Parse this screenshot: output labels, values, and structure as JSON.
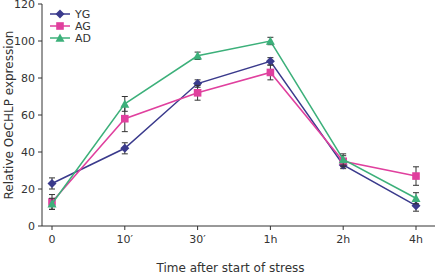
{
  "chart_data": {
    "type": "line",
    "x_label": "Time after start of stress",
    "y_label": "Relative OeCHLP expression",
    "categories": [
      "0",
      "10′",
      "30′",
      "1h",
      "2h",
      "4h"
    ],
    "series": [
      {
        "name": "YG",
        "color": "#3a3a8c",
        "marker": "diamond",
        "values": [
          23,
          42,
          77,
          89,
          33,
          11
        ],
        "errors": [
          3,
          3,
          2,
          2,
          2,
          3
        ]
      },
      {
        "name": "AG",
        "color": "#e0409e",
        "marker": "square",
        "values": [
          13,
          58,
          72,
          83,
          35,
          27
        ],
        "errors": [
          4,
          7,
          4,
          4,
          3,
          5
        ]
      },
      {
        "name": "AD",
        "color": "#3cb07a",
        "marker": "triangle",
        "values": [
          12,
          66,
          92,
          100,
          36,
          15
        ],
        "errors": [
          3,
          4,
          2,
          2,
          3,
          3
        ]
      }
    ],
    "ylim": [
      0,
      120
    ],
    "yticks": [
      0,
      20,
      40,
      60,
      80,
      100,
      120
    ],
    "legend": "upper left",
    "grid": false
  }
}
